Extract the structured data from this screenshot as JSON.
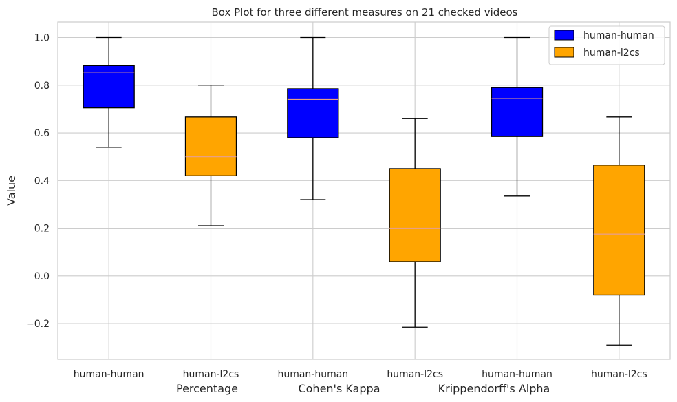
{
  "chart_data": {
    "type": "box",
    "title": "Box Plot for three different measures on 21 checked videos",
    "ylabel": "Value",
    "xlabel": "",
    "ylim": [
      -0.35,
      1.065
    ],
    "yticks": [
      -0.2,
      0.0,
      0.2,
      0.4,
      0.6,
      0.8,
      1.0
    ],
    "ytick_labels": [
      "−0.2",
      "0.0",
      "0.2",
      "0.4",
      "0.6",
      "0.8",
      "1.0"
    ],
    "grid": true,
    "legend_position": "top-right",
    "group_labels": [
      "Percentage",
      "Cohen's Kappa",
      "Krippendorff's Alpha"
    ],
    "series": [
      {
        "name": "human-human",
        "color": "#0000ff"
      },
      {
        "name": "human-l2cs",
        "color": "#ffa500"
      }
    ],
    "boxes": [
      {
        "label": "human-human",
        "group": "Percentage",
        "series": "human-human",
        "whisker_low": 0.54,
        "q1": 0.705,
        "median": 0.855,
        "q3": 0.882,
        "whisker_high": 1.0
      },
      {
        "label": "human-l2cs",
        "group": "Percentage",
        "series": "human-l2cs",
        "whisker_low": 0.21,
        "q1": 0.42,
        "median": 0.5,
        "q3": 0.667,
        "whisker_high": 0.8
      },
      {
        "label": "human-human",
        "group": "Cohen's Kappa",
        "series": "human-human",
        "whisker_low": 0.32,
        "q1": 0.58,
        "median": 0.74,
        "q3": 0.785,
        "whisker_high": 1.0
      },
      {
        "label": "human-l2cs",
        "group": "Cohen's Kappa",
        "series": "human-l2cs",
        "whisker_low": -0.215,
        "q1": 0.06,
        "median": 0.2,
        "q3": 0.45,
        "whisker_high": 0.66
      },
      {
        "label": "human-human",
        "group": "Krippendorff's Alpha",
        "series": "human-human",
        "whisker_low": 0.335,
        "q1": 0.585,
        "median": 0.745,
        "q3": 0.79,
        "whisker_high": 1.0
      },
      {
        "label": "human-l2cs",
        "group": "Krippendorff's Alpha",
        "series": "human-l2cs",
        "whisker_low": -0.29,
        "q1": -0.08,
        "median": 0.175,
        "q3": 0.465,
        "whisker_high": 0.667
      }
    ],
    "median_color": "#e8a083",
    "grid_color": "#cccccc"
  }
}
